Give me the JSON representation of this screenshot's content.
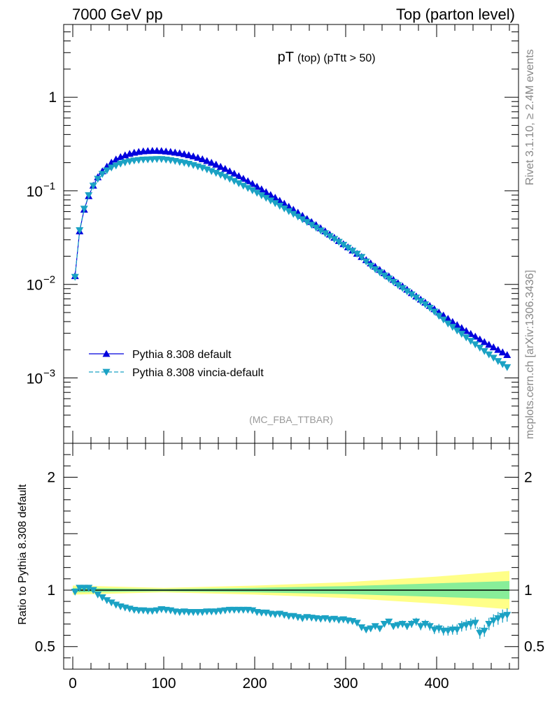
{
  "header": {
    "left": "7000 GeV pp",
    "right": "Top (parton level)"
  },
  "side_text": {
    "rivet": "Rivet 3.1.10, ≥ 2.4M events",
    "mcplots": "mcplots.cern.ch [arXiv:1306.3436]"
  },
  "chart_data": {
    "type": "line",
    "title": "pT",
    "title_sub": "(top) (pTtt > 50)",
    "watermark": "(MC_FBA_TTBAR)",
    "main": {
      "yscale": "log",
      "ylim": [
        0.0002,
        6
      ],
      "xlim": [
        -10,
        490
      ],
      "y_ticks": [
        {
          "value": 1,
          "label": "1"
        },
        {
          "value": 0.1,
          "base": "10",
          "exp": "−1"
        },
        {
          "value": 0.01,
          "base": "10",
          "exp": "−2"
        },
        {
          "value": 0.001,
          "base": "10",
          "exp": "−3"
        }
      ]
    },
    "ratio": {
      "ylabel": "Ratio to Pythia 8.308 default",
      "ylim": [
        0.3,
        2.3
      ],
      "y_ticks": [
        {
          "value": 0.5,
          "label": "0.5"
        },
        {
          "value": 1,
          "label": "1"
        },
        {
          "value": 2,
          "label": "2"
        }
      ],
      "x_ticks": [
        {
          "value": 0,
          "label": "0"
        },
        {
          "value": 100,
          "label": "100"
        },
        {
          "value": 200,
          "label": "200"
        },
        {
          "value": 300,
          "label": "300"
        },
        {
          "value": 400,
          "label": "400"
        }
      ]
    },
    "legend_position": "lower-left",
    "x": [
      2.5,
      7.5,
      12.5,
      17.5,
      22.5,
      27.5,
      32.5,
      37.5,
      42.5,
      47.5,
      52.5,
      57.5,
      62.5,
      67.5,
      72.5,
      77.5,
      82.5,
      87.5,
      92.5,
      97.5,
      102.5,
      107.5,
      112.5,
      117.5,
      122.5,
      127.5,
      132.5,
      137.5,
      142.5,
      147.5,
      152.5,
      157.5,
      162.5,
      167.5,
      172.5,
      177.5,
      182.5,
      187.5,
      192.5,
      197.5,
      202.5,
      207.5,
      212.5,
      217.5,
      222.5,
      227.5,
      232.5,
      237.5,
      242.5,
      247.5,
      252.5,
      257.5,
      262.5,
      267.5,
      272.5,
      277.5,
      282.5,
      287.5,
      292.5,
      297.5,
      302.5,
      307.5,
      312.5,
      317.5,
      322.5,
      327.5,
      332.5,
      337.5,
      342.5,
      347.5,
      352.5,
      357.5,
      362.5,
      367.5,
      372.5,
      377.5,
      382.5,
      387.5,
      392.5,
      397.5,
      402.5,
      407.5,
      412.5,
      417.5,
      422.5,
      427.5,
      432.5,
      437.5,
      442.5,
      447.5,
      452.5,
      457.5,
      462.5,
      467.5,
      472.5,
      477.5
    ],
    "series": [
      {
        "name": "Pythia 8.308 default",
        "color": "#0000dd",
        "marker": "triangle-up",
        "values": [
          0.0123,
          0.037,
          0.063,
          0.088,
          0.114,
          0.14,
          0.162,
          0.182,
          0.201,
          0.217,
          0.23,
          0.24,
          0.249,
          0.256,
          0.261,
          0.265,
          0.267,
          0.268,
          0.268,
          0.267,
          0.264,
          0.261,
          0.257,
          0.253,
          0.247,
          0.241,
          0.234,
          0.226,
          0.218,
          0.209,
          0.2,
          0.191,
          0.181,
          0.172,
          0.162,
          0.153,
          0.144,
          0.135,
          0.127,
          0.119,
          0.111,
          0.104,
          0.097,
          0.0905,
          0.0845,
          0.0785,
          0.073,
          0.0678,
          0.063,
          0.0585,
          0.0542,
          0.0502,
          0.0465,
          0.0431,
          0.0399,
          0.037,
          0.0342,
          0.0316,
          0.0292,
          0.027,
          0.025,
          0.0231,
          0.0213,
          0.0197,
          0.0182,
          0.0168,
          0.0155,
          0.0143,
          0.0132,
          0.0122,
          0.0112,
          0.01035,
          0.00955,
          0.0088,
          0.0081,
          0.00745,
          0.0069,
          0.0064,
          0.0059,
          0.00545,
          0.00502,
          0.00465,
          0.0043,
          0.00398,
          0.00368,
          0.00342,
          0.00318,
          0.00296,
          0.00277,
          0.00259,
          0.00242,
          0.00227,
          0.00213,
          0.002,
          0.00188,
          0.00176
        ]
      },
      {
        "name": "Pythia 8.308 vincia-default",
        "color": "#1ba2c4",
        "marker": "triangle-down",
        "values": [
          0.012,
          0.0378,
          0.0642,
          0.0897,
          0.113,
          0.134,
          0.151,
          0.165,
          0.177,
          0.186,
          0.195,
          0.201,
          0.206,
          0.21,
          0.213,
          0.215,
          0.216,
          0.217,
          0.218,
          0.218,
          0.215,
          0.212,
          0.208,
          0.203,
          0.199,
          0.194,
          0.188,
          0.182,
          0.176,
          0.169,
          0.162,
          0.155,
          0.148,
          0.141,
          0.134,
          0.127,
          0.12,
          0.113,
          0.107,
          0.101,
          0.095,
          0.0893,
          0.0838,
          0.0786,
          0.0736,
          0.069,
          0.0646,
          0.0605,
          0.0566,
          0.0529,
          0.0495,
          0.0463,
          0.0432,
          0.0403,
          0.0376,
          0.0351,
          0.0327,
          0.0305,
          0.0284,
          0.0264,
          0.0245,
          0.0228,
          0.0212,
          0.0196,
          0.0175,
          0.0158,
          0.0145,
          0.0134,
          0.0124,
          0.0115,
          0.0106,
          0.0098,
          0.0091,
          0.0084,
          0.0078,
          0.0072,
          0.0066,
          0.0061,
          0.0056,
          0.0051,
          0.0046,
          0.0042,
          0.0038,
          0.0035,
          0.0032,
          0.00295,
          0.0027,
          0.00248,
          0.00228,
          0.0021,
          0.00193,
          0.00178,
          0.00164,
          0.00151,
          0.0014,
          0.0013
        ]
      }
    ],
    "ratio_values": [
      0.985,
      1.02,
      1.02,
      1.02,
      1.0,
      0.96,
      0.935,
      0.91,
      0.89,
      0.87,
      0.855,
      0.845,
      0.835,
      0.825,
      0.82,
      0.82,
      0.815,
      0.815,
      0.82,
      0.83,
      0.825,
      0.82,
      0.81,
      0.805,
      0.81,
      0.805,
      0.805,
      0.805,
      0.805,
      0.81,
      0.81,
      0.81,
      0.815,
      0.82,
      0.825,
      0.825,
      0.825,
      0.825,
      0.825,
      0.82,
      0.805,
      0.8,
      0.8,
      0.79,
      0.785,
      0.79,
      0.78,
      0.77,
      0.77,
      0.76,
      0.75,
      0.76,
      0.755,
      0.75,
      0.745,
      0.75,
      0.74,
      0.745,
      0.735,
      0.74,
      0.73,
      0.725,
      0.71,
      0.67,
      0.65,
      0.66,
      0.68,
      0.66,
      0.7,
      0.72,
      0.68,
      0.69,
      0.7,
      0.68,
      0.7,
      0.72,
      0.68,
      0.7,
      0.68,
      0.65,
      0.66,
      0.64,
      0.64,
      0.65,
      0.65,
      0.68,
      0.69,
      0.7,
      0.71,
      0.62,
      0.64,
      0.7,
      0.73,
      0.75,
      0.77,
      0.78
    ],
    "ratio_band_green": {
      "x": [
        0,
        100,
        200,
        300,
        400,
        480
      ],
      "half_width": [
        0.02,
        0.01,
        0.02,
        0.035,
        0.06,
        0.08
      ]
    },
    "ratio_band_yellow": {
      "x": [
        0,
        100,
        200,
        300,
        400,
        480
      ],
      "half_width": [
        0.04,
        0.02,
        0.04,
        0.07,
        0.12,
        0.17
      ]
    }
  }
}
